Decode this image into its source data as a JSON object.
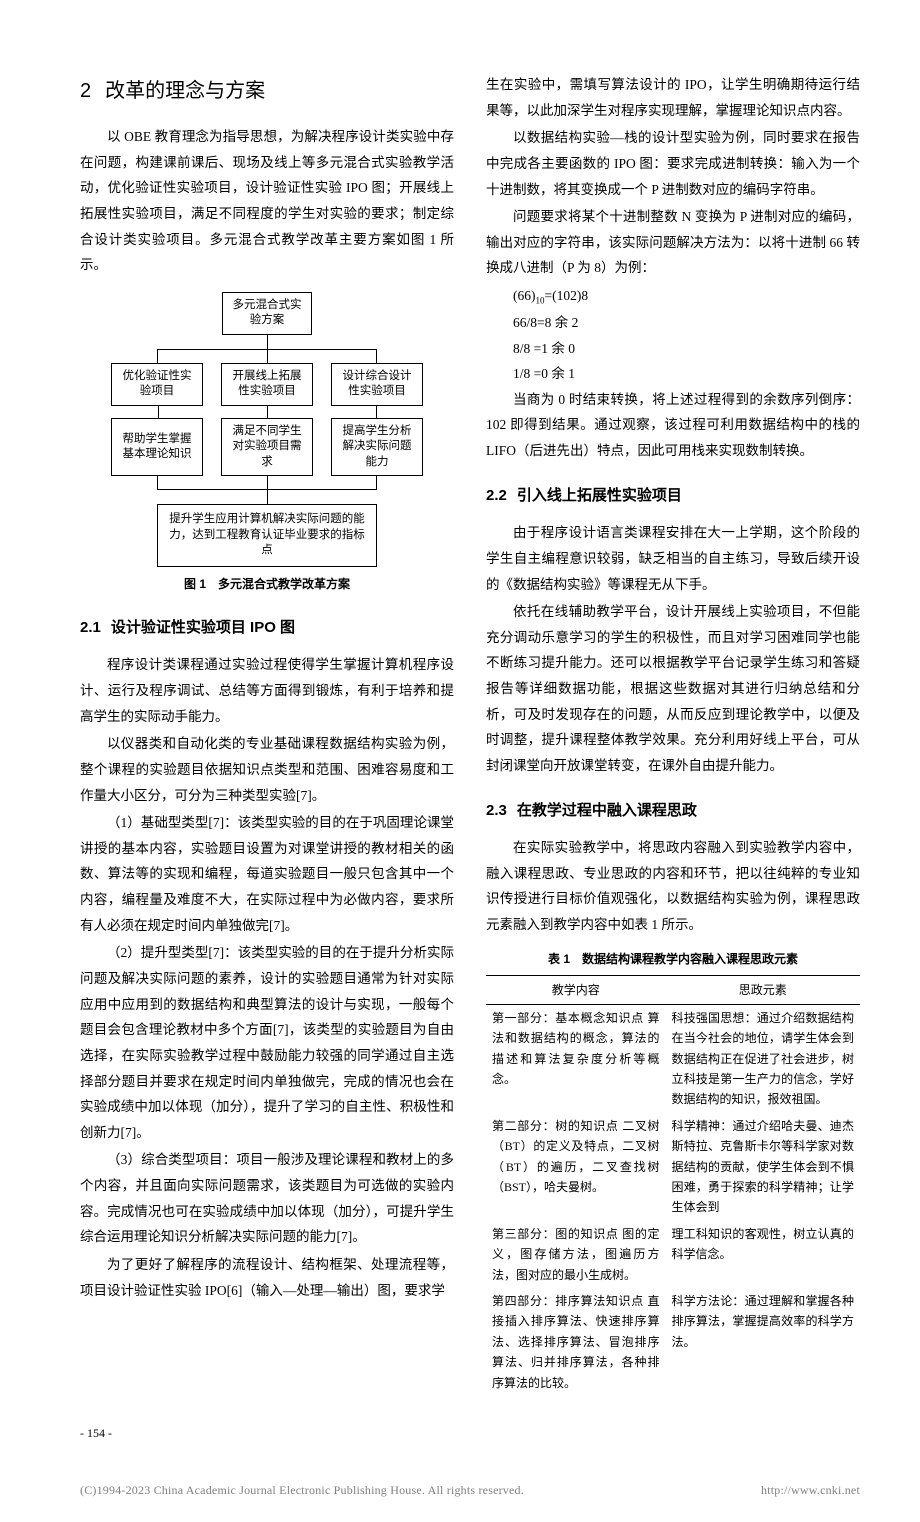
{
  "section2": {
    "num": "2",
    "title": "改革的理念与方案",
    "p1": "以 OBE 教育理念为指导思想，为解决程序设计类实验中存在问题，构建课前课后、现场及线上等多元混合式实验教学活动，优化验证性实验项目，设计验证性实验 IPO 图；开展线上拓展性实验项目，满足不同程度的学生对实验的要求；制定综合设计类实验项目。多元混合式教学改革主要方案如图 1 所示。"
  },
  "figure1": {
    "caption": "图 1　多元混合式教学改革方案",
    "top": "多元混合式实验方案",
    "row1": [
      "优化验证性实验项目",
      "开展线上拓展性实验项目",
      "设计综合设计性实验项目"
    ],
    "row2": [
      "帮助学生掌握基本理论知识",
      "满足不同学生对实验项目需求",
      "提高学生分析解决实际问题能力"
    ],
    "bottom": "提升学生应用计算机解决实际问题的能力，达到工程教育认证毕业要求的指标点"
  },
  "sec21": {
    "num": "2.1",
    "title": "设计验证性实验项目 IPO 图",
    "p1": "程序设计类课程通过实验过程使得学生掌握计算机程序设计、运行及程序调试、总结等方面得到锻炼，有利于培养和提高学生的实际动手能力。",
    "p2": "以仪器类和自动化类的专业基础课程数据结构实验为例，整个课程的实验题目依据知识点类型和范围、困难容易度和工作量大小区分，可分为三种类型实验[7]。",
    "p3": "（1）基础型类型[7]：该类型实验的目的在于巩固理论课堂讲授的基本内容，实验题目设置为对课堂讲授的教材相关的函数、算法等的实现和编程，每道实验题目一般只包含其中一个内容，编程量及难度不大，在实际过程中为必做内容，要求所有人必须在规定时间内单独做完[7]。",
    "p4": "（2）提升型类型[7]：该类型实验的目的在于提升分析实际问题及解决实际问题的素养，设计的实验题目通常为针对实际应用中应用到的数据结构和典型算法的设计与实现，一般每个题目会包含理论教材中多个方面[7]，该类型的实验题目为自由选择，在实际实验教学过程中鼓励能力较强的同学通过自主选择部分题目并要求在规定时间内单独做完，完成的情况也会在实验成绩中加以体现（加分），提升了学习的自主性、积极性和创新力[7]。",
    "p5": "（3）综合类型项目：项目一般涉及理论课程和教材上的多个内容，并且面向实际问题需求，该类题目为可选做的实验内容。完成情况也可在实验成绩中加以体现（加分），可提升学生综合运用理论知识分析解决实际问题的能力[7]。",
    "p6": "为了更好了解程序的流程设计、结构框架、处理流程等，项目设计验证性实验 IPO[6]（输入—处理—输出）图，要求学"
  },
  "right": {
    "p1": "生在实验中，需填写算法设计的 IPO，让学生明确期待运行结果等，以此加深学生对程序实现理解，掌握理论知识点内容。",
    "p2": "以数据结构实验—栈的设计型实验为例，同时要求在报告中完成各主要函数的 IPO 图：要求完成进制转换：输入为一个十进制数，将其变换成一个 P 进制数对应的编码字符串。",
    "p3": "问题要求将某个十进制整数 N 变换为 P 进制对应的编码，输出对应的字符串，该实际问题解决方法为：以将十进制 66 转换成八进制（P 为 8）为例：",
    "calc": [
      "(66)₁₀=(102)8",
      "66/8=8  余  2",
      "8/8 =1  余  0",
      "1/8 =0  余  1"
    ],
    "p4": "当商为 0 时结束转换，将上述过程得到的余数序列倒序：102 即得到结果。通过观察，该过程可利用数据结构中的栈的 LIFO（后进先出）特点，因此可用栈来实现数制转换。"
  },
  "sec22": {
    "num": "2.2",
    "title": "引入线上拓展性实验项目",
    "p1": "由于程序设计语言类课程安排在大一上学期，这个阶段的学生自主编程意识较弱，缺乏相当的自主练习，导致后续开设的《数据结构实验》等课程无从下手。",
    "p2": "依托在线辅助教学平台，设计开展线上实验项目，不但能充分调动乐意学习的学生的积极性，而且对学习困难同学也能不断练习提升能力。还可以根据教学平台记录学生练习和答疑报告等详细数据功能，根据这些数据对其进行归纳总结和分析，可及时发现存在的问题，从而反应到理论教学中，以便及时调整，提升课程整体教学效果。充分利用好线上平台，可从封闭课堂向开放课堂转变，在课外自由提升能力。"
  },
  "sec23": {
    "num": "2.3",
    "title": "在教学过程中融入课程思政",
    "p1": "在实际实验教学中，将思政内容融入到实验教学内容中，融入课程思政、专业思政的内容和环节，把以往纯粹的专业知识传授进行目标价值观强化，以数据结构实验为例，课程思政元素融入到教学内容中如表 1 所示。"
  },
  "table1": {
    "caption": "表 1　数据结构课程教学内容融入课程思政元素",
    "headers": [
      "教学内容",
      "思政元素"
    ],
    "rows": [
      [
        "第一部分：基本概念知识点\n算法和数据结构的概念，算法的描述和算法复杂度分析等概念。",
        "科技强国思想：通过介绍数据结构在当今社会的地位，请学生体会到数据结构正在促进了社会进步，树立科技是第一生产力的信念，学好数据结构的知识，报效祖国。"
      ],
      [
        "第二部分：树的知识点\n二叉树（BT）的定义及特点，二叉树（BT）的遍历，二叉查找树（BST），哈夫曼树。",
        "科学精神：通过介绍哈夫曼、迪杰斯特拉、克鲁斯卡尔等科学家对数据结构的贡献，使学生体会到不惧困难，勇于探索的科学精神；让学生体会到"
      ],
      [
        "第三部分：图的知识点\n图的定义，图存储方法，图遍历方法，图对应的最小生成树。",
        "理工科知识的客观性，树立认真的科学信念。"
      ],
      [
        "第四部分：排序算法知识点\n直接插入排序算法、快速排序算法、选择排序算法、冒泡排序算法、归并排序算法，各种排序算法的比较。",
        "科学方法论：通过理解和掌握各种排序算法，掌握提高效率的科学方法。"
      ]
    ]
  },
  "pageNum": "- 154 -",
  "footer": {
    "left": "(C)1994-2023 China Academic Journal Electronic Publishing House. All rights reserved.",
    "right": "http://www.cnki.net"
  }
}
